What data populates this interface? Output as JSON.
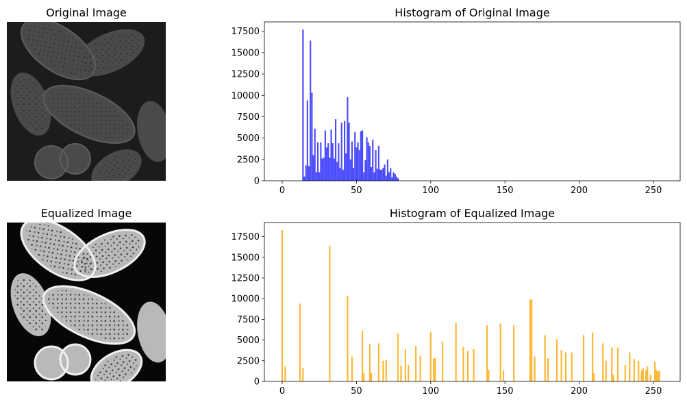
{
  "panels": {
    "original_image": {
      "title": "Original Image",
      "description": "grayscale micrograph of pollen grains (low contrast)",
      "tone": {
        "background": "#1c1c1c",
        "grain": "#4a4a4a",
        "grain_edge": "#5e5e5e",
        "pore": "#2c2c2c"
      }
    },
    "equalized_image": {
      "title": "Equalized Image",
      "description": "same micrograph after histogram equalization (high contrast)",
      "tone": {
        "background": "#070707",
        "grain": "#b9b9b9",
        "grain_edge": "#f0f0f0",
        "pore": "#3a3a3a"
      }
    }
  },
  "chart_data": [
    {
      "type": "bar",
      "title": "Histogram of Original Image",
      "xlabel": "",
      "ylabel": "",
      "xlim": [
        -12,
        268
      ],
      "ylim": [
        0,
        18600
      ],
      "xticks": [
        0,
        50,
        100,
        150,
        200,
        250
      ],
      "yticks": [
        0,
        2500,
        5000,
        7500,
        10000,
        12500,
        15000,
        17500
      ],
      "bar_width": 1,
      "color": "#4c4cff",
      "grid": false,
      "x": [
        14,
        15,
        16,
        17,
        18,
        19,
        20,
        21,
        22,
        23,
        24,
        25,
        26,
        27,
        28,
        29,
        30,
        31,
        32,
        33,
        34,
        35,
        36,
        37,
        38,
        39,
        40,
        41,
        42,
        43,
        44,
        45,
        46,
        47,
        48,
        49,
        50,
        51,
        52,
        53,
        54,
        55,
        56,
        57,
        58,
        59,
        60,
        61,
        62,
        63,
        64,
        65,
        66,
        67,
        68,
        69,
        70,
        71,
        72,
        73,
        74,
        75,
        76,
        77,
        78
      ],
      "values": [
        17700,
        500,
        1800,
        9400,
        1700,
        16400,
        10300,
        3000,
        6100,
        1000,
        4500,
        1000,
        4500,
        2600,
        2700,
        5900,
        3900,
        4400,
        2700,
        6000,
        4400,
        2600,
        7200,
        2200,
        4400,
        1500,
        6800,
        1300,
        7000,
        3200,
        9800,
        6800,
        2500,
        4600,
        1500,
        5700,
        3900,
        4500,
        3600,
        5800,
        5900,
        1000,
        2400,
        5100,
        4500,
        4100,
        1600,
        4800,
        1000,
        3600,
        1400,
        4100,
        1300,
        1300,
        1500,
        1900,
        600,
        2500,
        1000,
        1500,
        400,
        1000,
        800,
        500,
        300
      ]
    },
    {
      "type": "bar",
      "title": "Histogram of Equalized Image",
      "xlabel": "",
      "ylabel": "",
      "xlim": [
        -12,
        268
      ],
      "ylim": [
        0,
        19200
      ],
      "xticks": [
        0,
        50,
        100,
        150,
        200,
        250
      ],
      "yticks": [
        0,
        2500,
        5000,
        7500,
        10000,
        12500,
        15000,
        17500
      ],
      "bar_width": 1,
      "color": "#ffb733",
      "grid": false,
      "x": [
        0,
        2,
        12,
        14,
        32,
        44,
        47,
        54,
        55,
        59,
        60,
        65,
        68,
        70,
        78,
        80,
        83,
        85,
        90,
        93,
        100,
        102,
        103,
        108,
        117,
        122,
        125,
        129,
        138,
        139,
        147,
        149,
        156,
        167,
        168,
        170,
        177,
        179,
        185,
        188,
        191,
        195,
        203,
        209,
        210,
        216,
        218,
        222,
        223,
        226,
        231,
        234,
        237,
        240,
        242,
        243,
        245,
        246,
        248,
        251,
        252,
        253,
        254
      ],
      "values": [
        18300,
        1800,
        9400,
        1600,
        16400,
        10300,
        3000,
        6100,
        1000,
        4500,
        1000,
        4600,
        2500,
        2600,
        5800,
        1900,
        3900,
        2000,
        4300,
        3100,
        6000,
        2800,
        2800,
        4800,
        7100,
        4200,
        3700,
        3900,
        6800,
        1400,
        7000,
        1300,
        6800,
        9900,
        9900,
        3000,
        5600,
        2800,
        5100,
        3800,
        3500,
        3500,
        5600,
        5900,
        1000,
        4600,
        2500,
        4100,
        800,
        4100,
        2000,
        3500,
        2700,
        2500,
        1300,
        1600,
        1400,
        1800,
        800,
        2400,
        1400,
        1200,
        1300
      ]
    }
  ]
}
